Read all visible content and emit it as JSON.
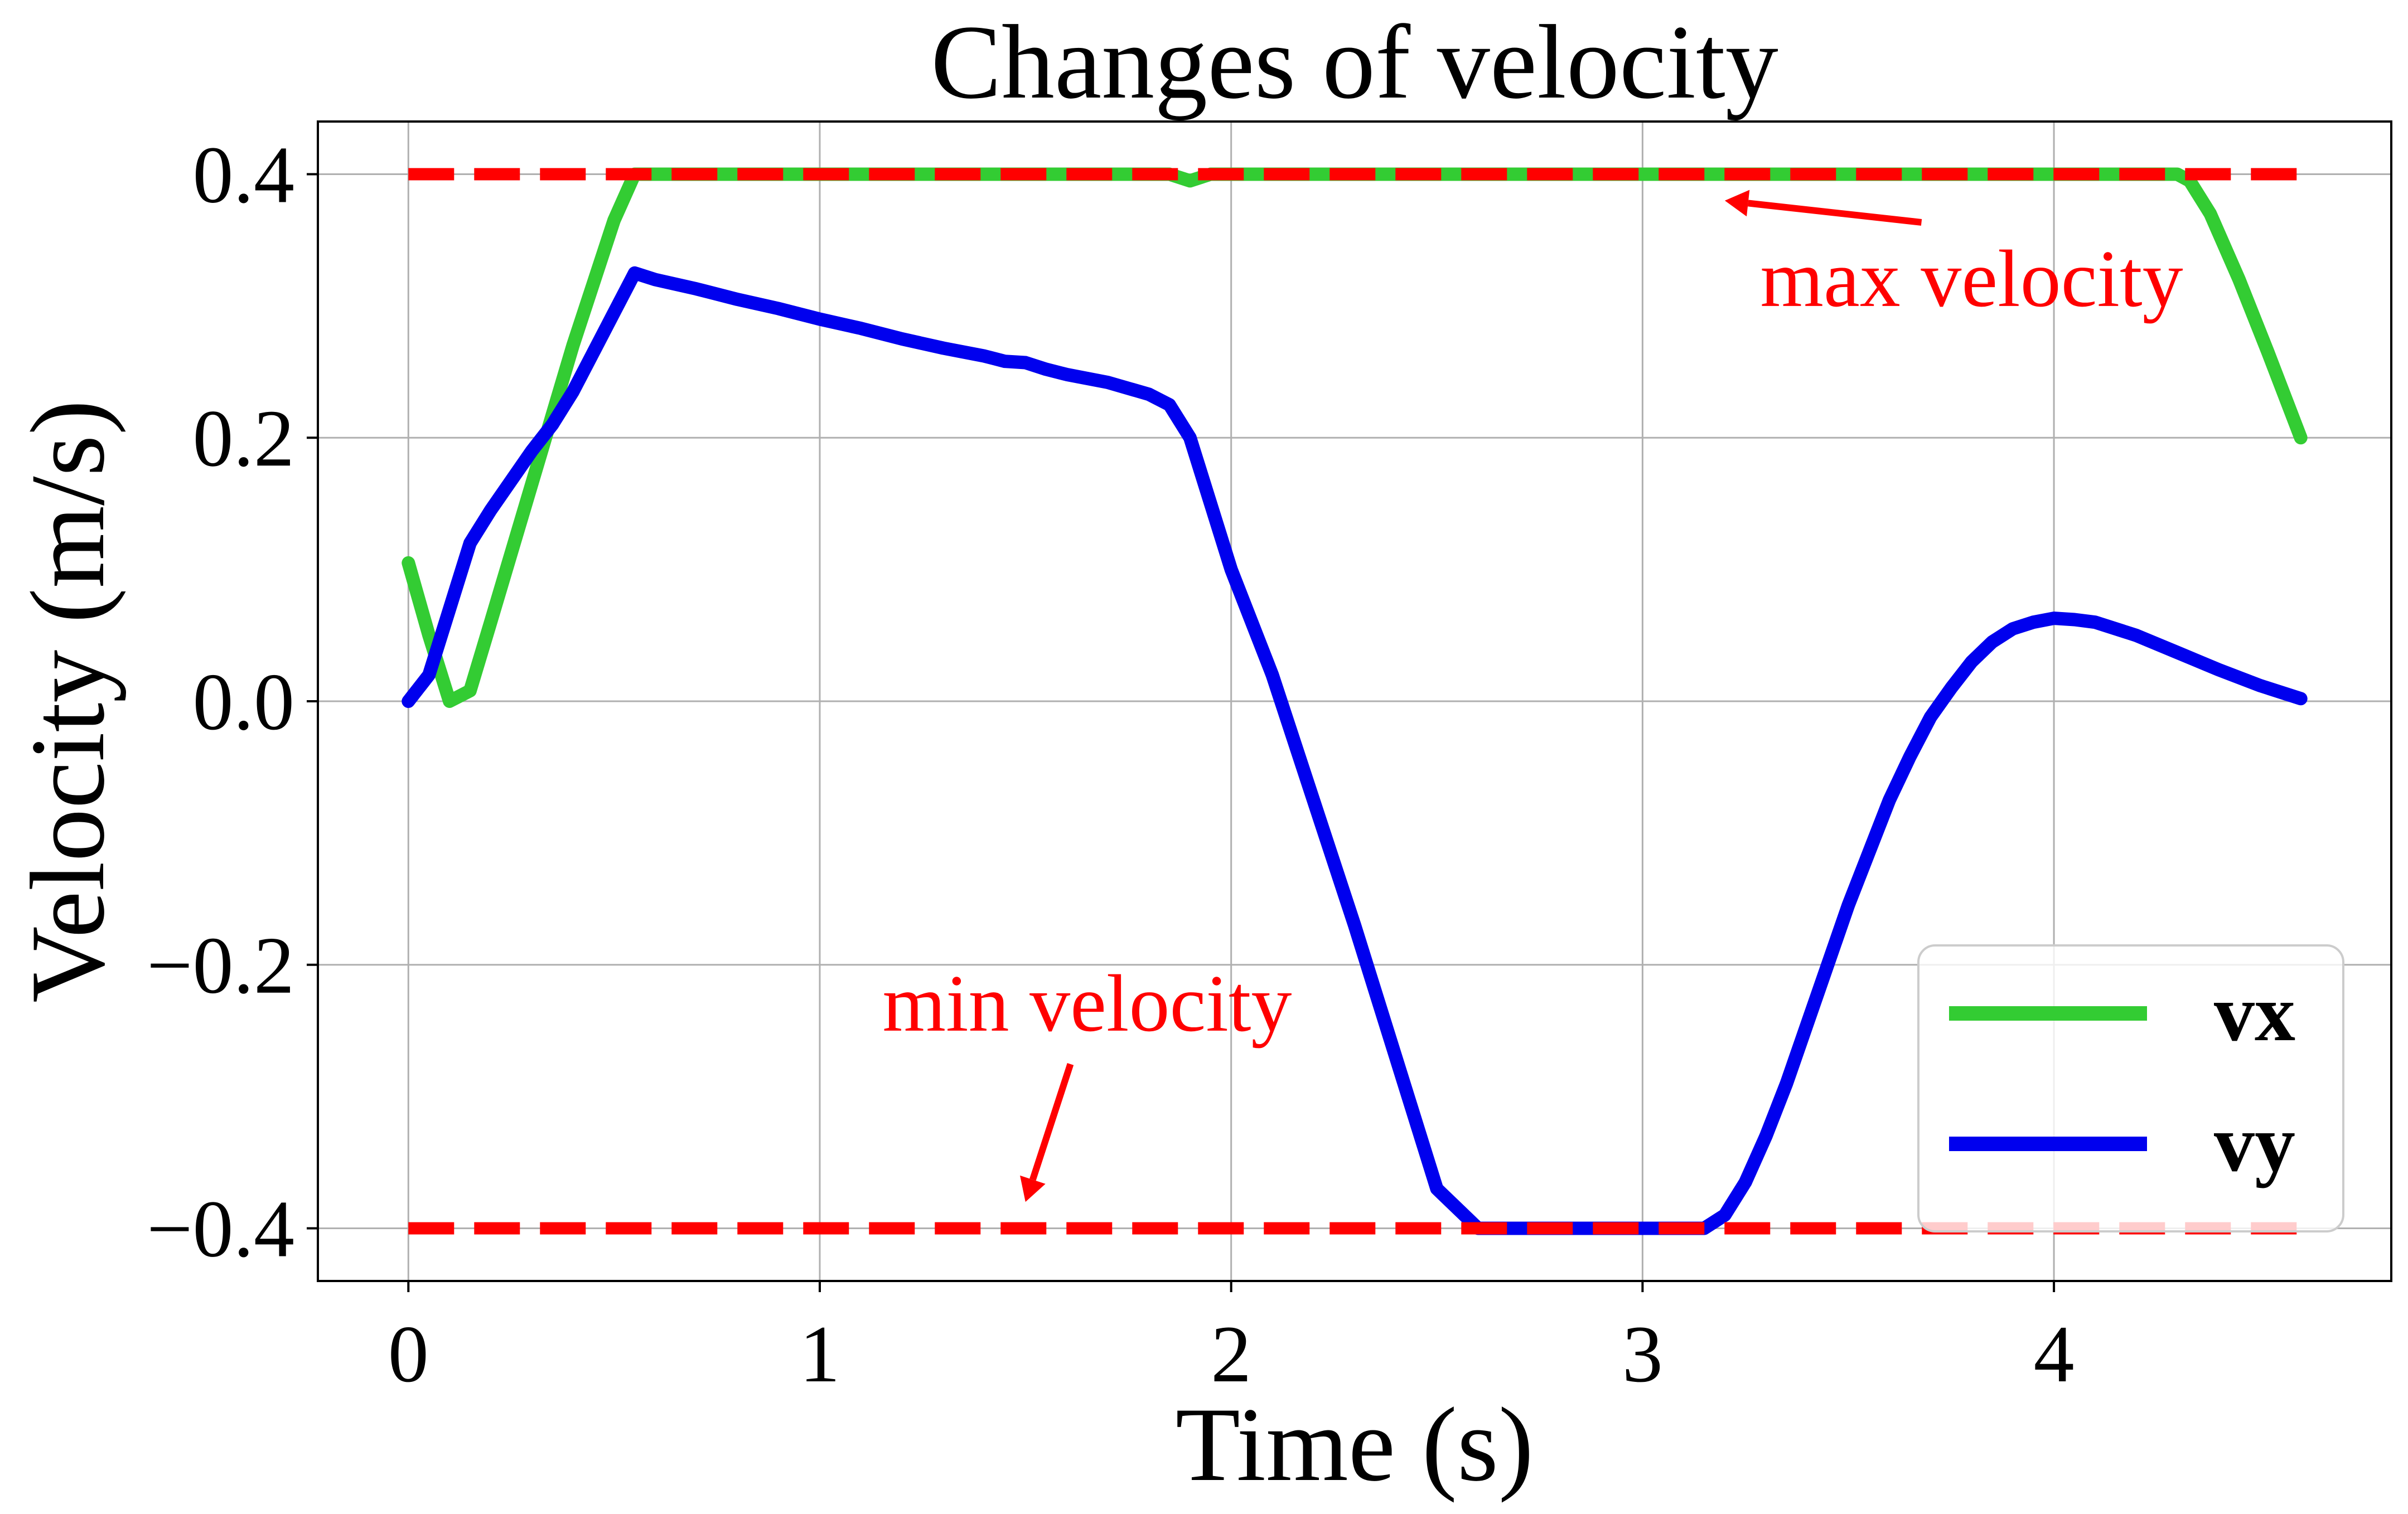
{
  "chart_data": {
    "type": "line",
    "title": "Changes of velocity",
    "xlabel": "Time (s)",
    "ylabel": "Velocity (m/s)",
    "xlim": [
      -0.22,
      4.82
    ],
    "ylim": [
      -0.44,
      0.44
    ],
    "xticks": [
      0,
      1,
      2,
      3,
      4
    ],
    "xtick_labels": [
      "0",
      "1",
      "2",
      "3",
      "4"
    ],
    "yticks": [
      -0.4,
      -0.2,
      0.0,
      0.2,
      0.4
    ],
    "ytick_labels": [
      "−0.4",
      "−0.2",
      "0.0",
      "0.2",
      "0.4"
    ],
    "grid": true,
    "legend_position": "bottom-right",
    "series": [
      {
        "name": "vx",
        "color": "#33cc33",
        "style": "solid",
        "x": [
          0,
          0.05,
          0.1,
          0.15,
          0.2,
          0.3,
          0.4,
          0.5,
          0.55,
          0.6,
          1.0,
          1.5,
          1.8,
          1.85,
          1.9,
          1.95,
          2.0,
          2.5,
          3.0,
          3.5,
          4.0,
          4.3,
          4.33,
          4.38,
          4.45,
          4.52,
          4.6
        ],
        "values": [
          0.105,
          0.05,
          0.0,
          0.008,
          0.06,
          0.165,
          0.27,
          0.365,
          0.4,
          0.4,
          0.4,
          0.4,
          0.4,
          0.4,
          0.395,
          0.4,
          0.4,
          0.4,
          0.4,
          0.4,
          0.4,
          0.4,
          0.395,
          0.37,
          0.32,
          0.265,
          0.2
        ]
      },
      {
        "name": "vy",
        "color": "#0000ee",
        "style": "solid",
        "x": [
          0,
          0.05,
          0.1,
          0.15,
          0.2,
          0.3,
          0.35,
          0.4,
          0.45,
          0.5,
          0.55,
          0.6,
          0.7,
          0.8,
          0.9,
          1.0,
          1.1,
          1.2,
          1.3,
          1.4,
          1.45,
          1.5,
          1.55,
          1.6,
          1.7,
          1.8,
          1.85,
          1.9,
          2.0,
          2.1,
          2.2,
          2.3,
          2.4,
          2.5,
          2.6,
          2.7,
          2.8,
          2.9,
          3.0,
          3.1,
          3.15,
          3.2,
          3.25,
          3.3,
          3.35,
          3.4,
          3.45,
          3.5,
          3.55,
          3.6,
          3.65,
          3.7,
          3.75,
          3.8,
          3.85,
          3.9,
          3.95,
          4.0,
          4.05,
          4.1,
          4.2,
          4.3,
          4.4,
          4.5,
          4.6
        ],
        "values": [
          0.0,
          0.02,
          0.07,
          0.12,
          0.145,
          0.19,
          0.21,
          0.235,
          0.265,
          0.295,
          0.325,
          0.32,
          0.313,
          0.305,
          0.298,
          0.29,
          0.283,
          0.275,
          0.268,
          0.262,
          0.258,
          0.257,
          0.252,
          0.248,
          0.242,
          0.233,
          0.225,
          0.2,
          0.1,
          0.02,
          -0.075,
          -0.17,
          -0.27,
          -0.37,
          -0.4,
          -0.4,
          -0.4,
          -0.4,
          -0.4,
          -0.4,
          -0.4,
          -0.39,
          -0.365,
          -0.33,
          -0.29,
          -0.245,
          -0.2,
          -0.155,
          -0.115,
          -0.075,
          -0.042,
          -0.012,
          0.01,
          0.03,
          0.045,
          0.055,
          0.06,
          0.063,
          0.062,
          0.06,
          0.05,
          0.037,
          0.024,
          0.012,
          0.002
        ]
      },
      {
        "name": "max",
        "color": "#ff0000",
        "style": "dashed",
        "x": [
          0,
          4.6
        ],
        "values": [
          0.4,
          0.4
        ]
      },
      {
        "name": "min",
        "color": "#ff0000",
        "style": "dashed",
        "x": [
          0,
          4.6
        ],
        "values": [
          -0.4,
          -0.4
        ]
      }
    ],
    "legend": [
      "vx",
      "vy"
    ],
    "annotations": [
      {
        "text": "max velocity",
        "color": "#ff0000",
        "arrow_to": [
          3.2,
          0.38
        ],
        "text_at": [
          3.8,
          0.3
        ]
      },
      {
        "text": "min velocity",
        "color": "#ff0000",
        "arrow_to": [
          1.5,
          -0.38
        ],
        "text_at": [
          1.65,
          -0.25
        ]
      }
    ]
  }
}
